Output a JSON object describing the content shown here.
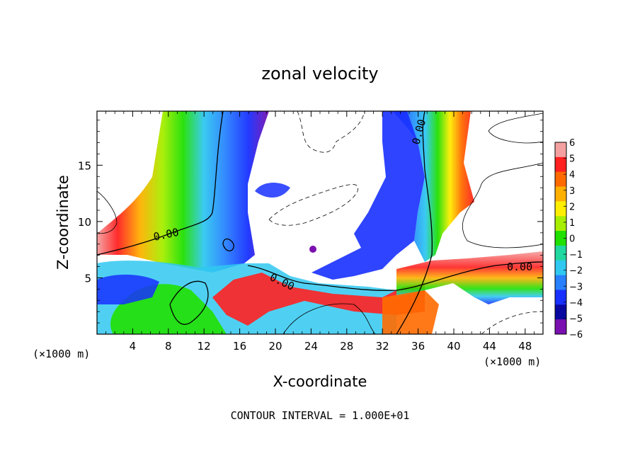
{
  "chart_data": {
    "type": "heatmap",
    "title": "zonal velocity",
    "xlabel": "X-coordinate",
    "ylabel": "Z-coordinate",
    "x_unit": "(×1000 m)",
    "z_unit": "(×1000 m)",
    "xlim": [
      0,
      50
    ],
    "ylim": [
      0,
      19.8
    ],
    "x_ticks": [
      4,
      8,
      12,
      16,
      20,
      24,
      28,
      32,
      36,
      40,
      44,
      48
    ],
    "y_ticks": [
      5,
      10,
      15
    ],
    "colorbar": {
      "levels": [
        6,
        5,
        4,
        3,
        2,
        1,
        0,
        -1,
        -2,
        -3,
        -4,
        -5,
        -6
      ],
      "colors": [
        "#f4a0a0",
        "#ff2020",
        "#ff6a00",
        "#ffb000",
        "#ffee00",
        "#a8ee00",
        "#20e000",
        "#20d8a0",
        "#30c8f0",
        "#2880ff",
        "#1830ff",
        "#0808a0",
        "#7a10b0"
      ]
    },
    "contour_labels": [
      "0.00",
      "0.00",
      "0.00",
      "0.00"
    ],
    "footer": "CONTOUR INTERVAL = 1.000E+01"
  }
}
